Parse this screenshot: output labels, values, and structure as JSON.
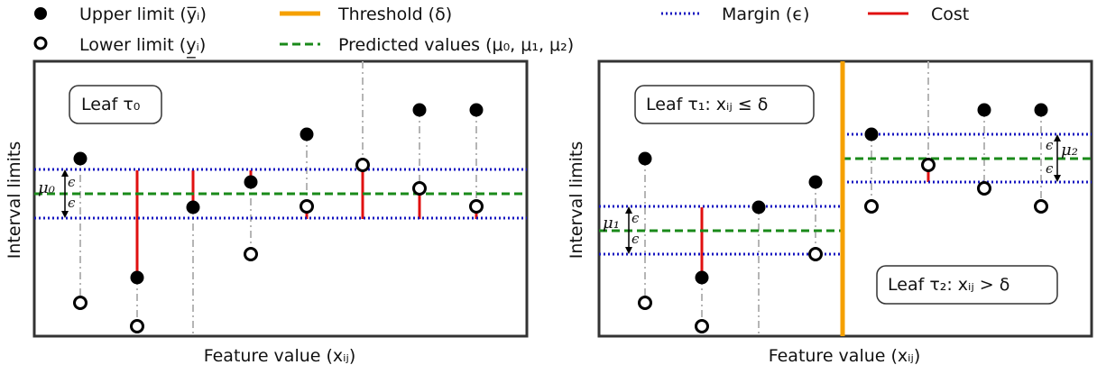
{
  "legend": {
    "upper": "Upper limit (y̅ᵢ)",
    "lower": "Lower limit (y̲ᵢ)",
    "threshold": "Threshold (δ)",
    "predicted": "Predicted values (μ₀, μ₁, μ₂)",
    "margin": "Margin (ϵ)",
    "cost": "Cost"
  },
  "colors": {
    "upper": "#000000",
    "threshold": "#f5a000",
    "predicted": "#1a8a1a",
    "margin": "#1515c0",
    "cost": "#e01010",
    "connector": "#b5b5b5"
  },
  "left_panel": {
    "leaf_label": "Leaf τ₀",
    "mu_label": "μ₀",
    "eps_top": "ϵ",
    "eps_bottom": "ϵ",
    "xlabel": "Feature value (xᵢⱼ)",
    "ylabel": "Interval limits"
  },
  "right_panel": {
    "leaf1_label": "Leaf τ₁: xᵢⱼ ≤ δ",
    "leaf2_label": "Leaf τ₂: xᵢⱼ > δ",
    "mu1_label": "μ₁",
    "mu2_label": "μ₂",
    "eps1_top": "ϵ",
    "eps1_bottom": "ϵ",
    "eps2_top": "ϵ",
    "eps2_bottom": "ϵ",
    "xlabel": "Feature value (xᵢⱼ)",
    "ylabel": "Interval limits"
  }
}
